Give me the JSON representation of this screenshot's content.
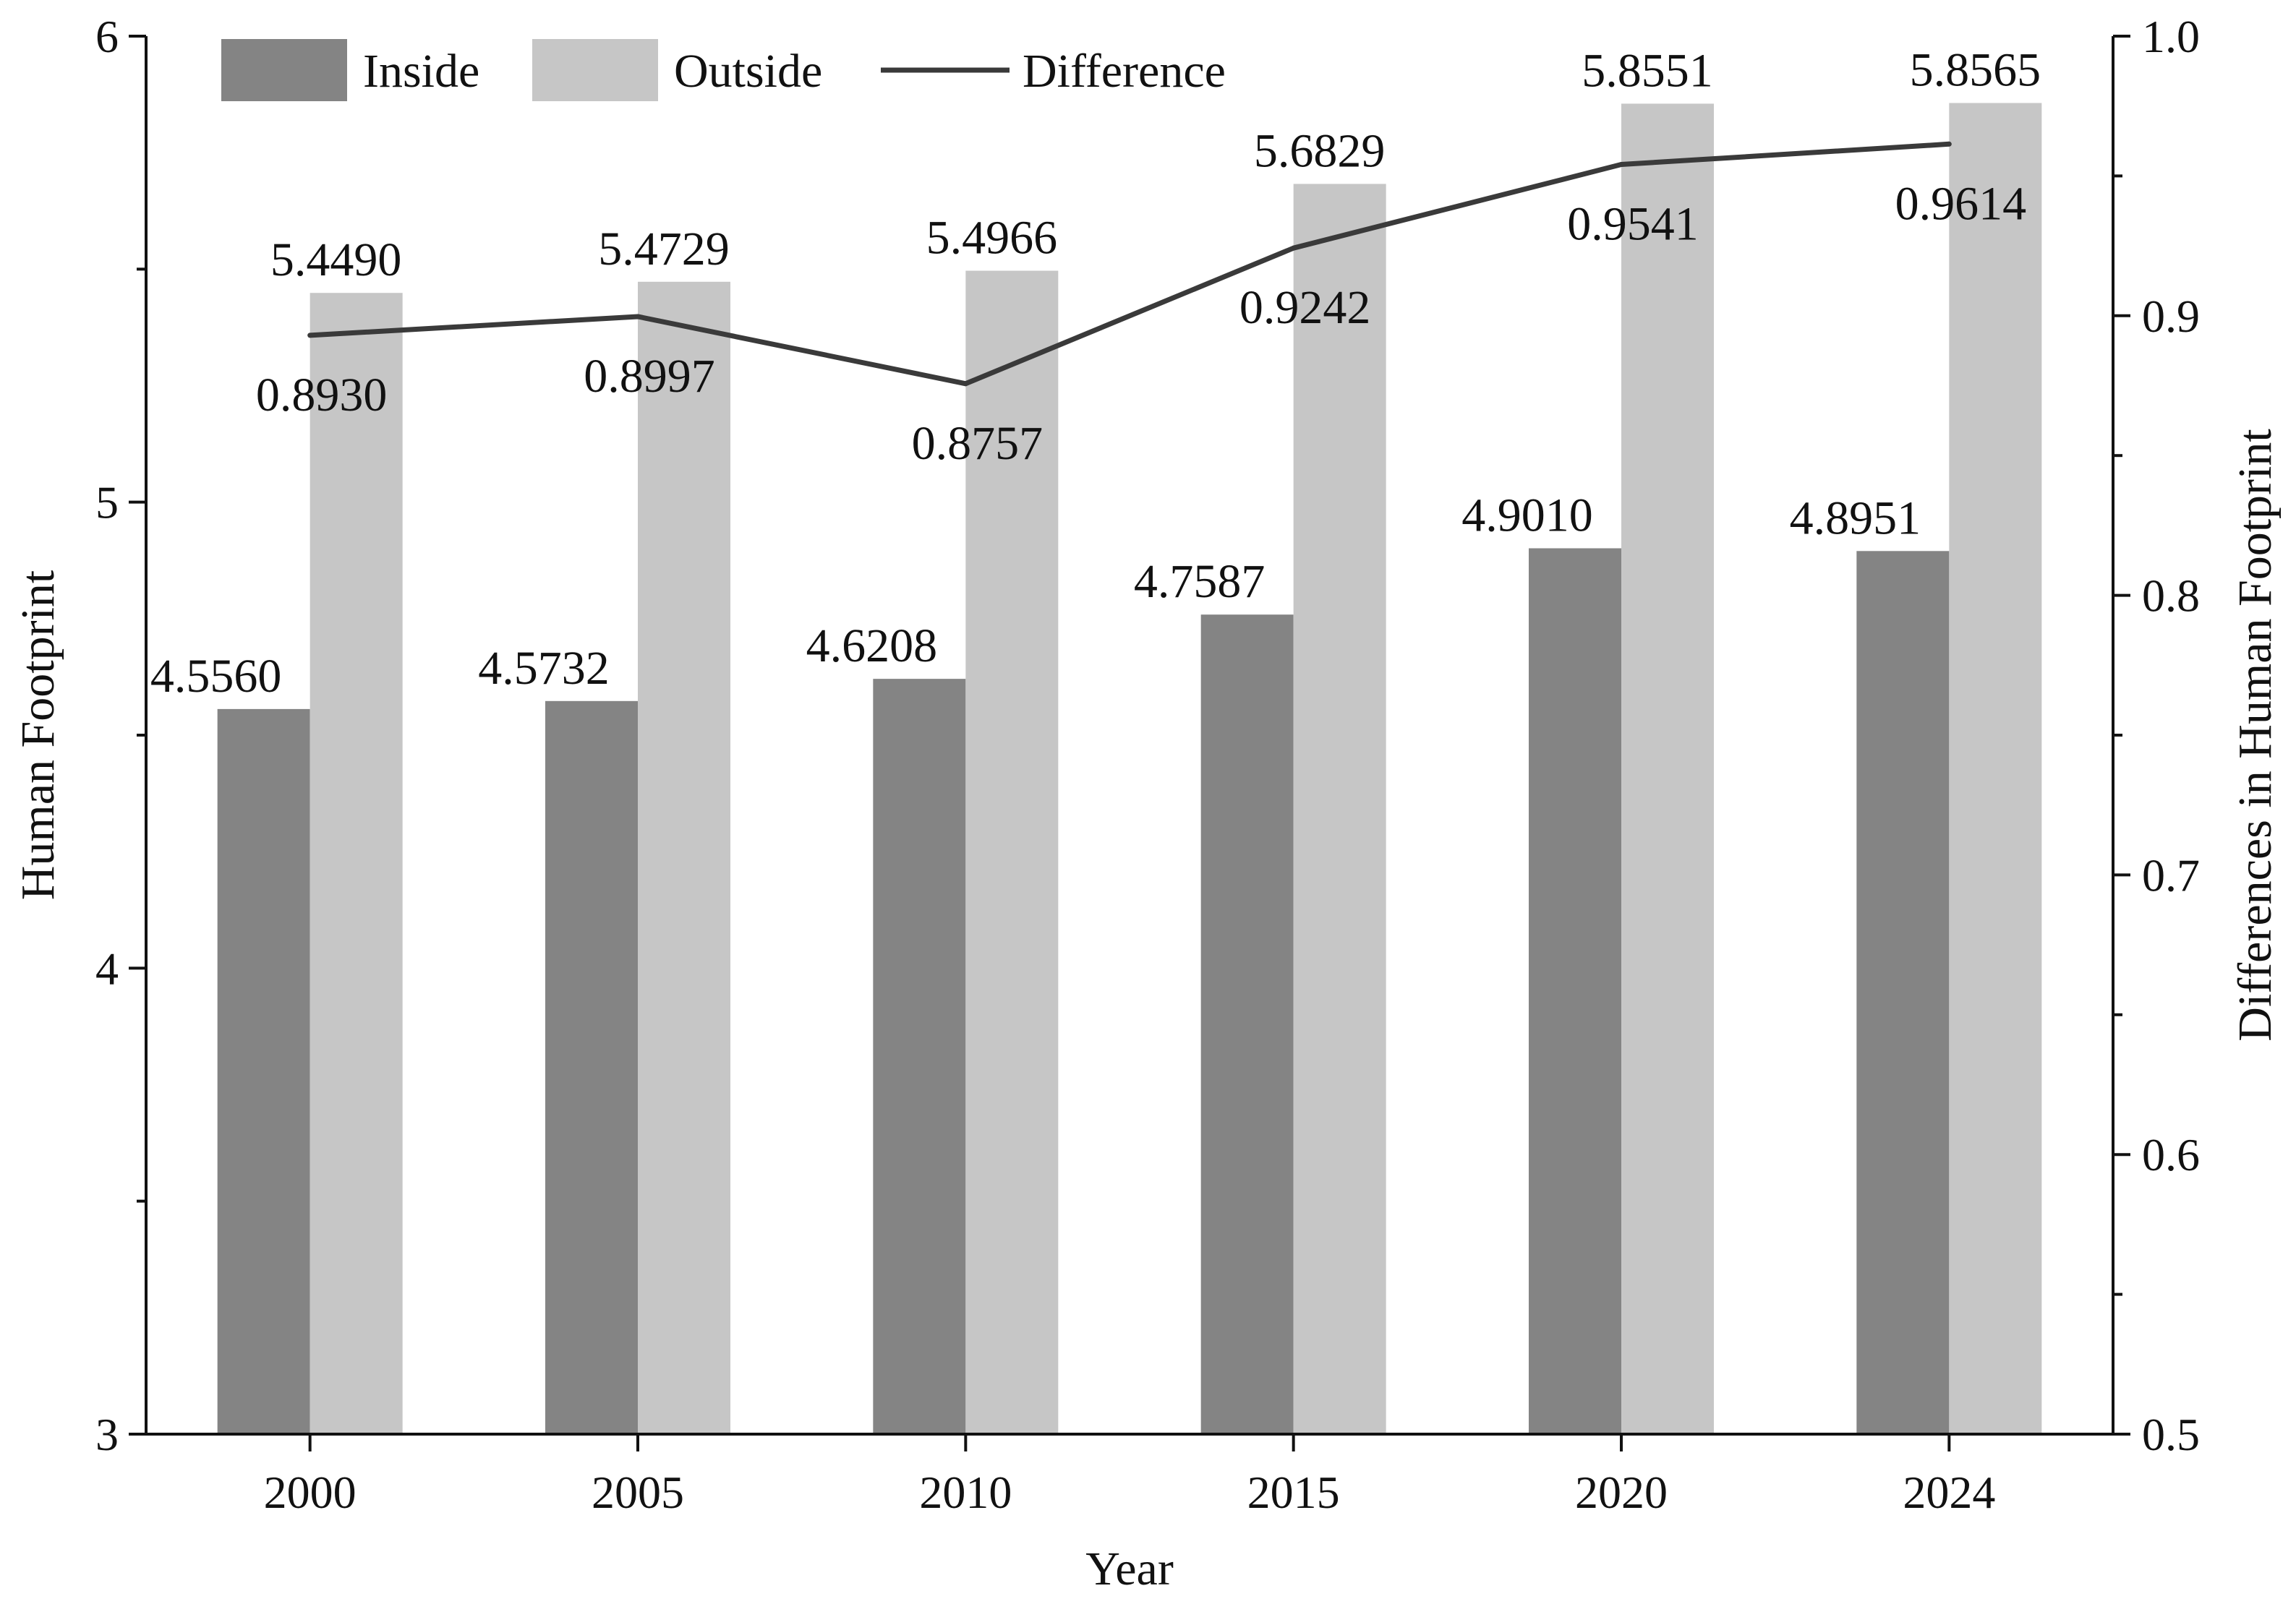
{
  "chart_data": {
    "type": "bar",
    "title": "",
    "xlabel": "Year",
    "ylabel": "Human Footprint",
    "y2label": "Differences in Human Footprint",
    "ylim": [
      3,
      6
    ],
    "y2lim": [
      0.5,
      1.0
    ],
    "yticks": [
      3,
      4,
      5,
      6
    ],
    "y2ticks": [
      "0.5",
      "0.6",
      "0.7",
      "0.8",
      "0.9",
      "1.0"
    ],
    "grid": false,
    "legend_position": "top-left",
    "categories": [
      "2000",
      "2005",
      "2010",
      "2015",
      "2020",
      "2024"
    ],
    "series": [
      {
        "name": "Inside",
        "kind": "bar",
        "axis": "left",
        "color": "#848484",
        "values": [
          4.556,
          4.5732,
          4.6208,
          4.7587,
          4.901,
          4.8951
        ],
        "labels": [
          "4.5560",
          "4.5732",
          "4.6208",
          "4.7587",
          "4.9010",
          "4.8951"
        ]
      },
      {
        "name": "Outside",
        "kind": "bar",
        "axis": "left",
        "color": "#c6c6c6",
        "values": [
          5.449,
          5.4729,
          5.4966,
          5.6829,
          5.8551,
          5.8565
        ],
        "labels": [
          "5.4490",
          "5.4729",
          "5.4966",
          "5.6829",
          "5.8551",
          "5.8565"
        ]
      },
      {
        "name": "Difference",
        "kind": "line",
        "axis": "right",
        "color": "#3a3a3a",
        "values": [
          0.893,
          0.8997,
          0.8757,
          0.9242,
          0.9541,
          0.9614
        ],
        "labels": [
          "0.8930",
          "0.8997",
          "0.8757",
          "0.9242",
          "0.9541",
          "0.9614"
        ]
      }
    ]
  }
}
